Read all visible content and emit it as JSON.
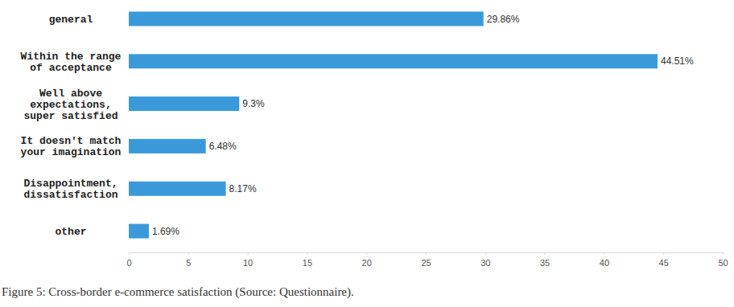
{
  "chart_data": {
    "type": "bar",
    "orientation": "horizontal",
    "title": "Figure 5: Cross-border e-commerce satisfaction (Source: Questionnaire).",
    "categories": [
      "general",
      "Within the range\nof acceptance",
      "Well above\nexpectations,\nsuper satisfied",
      "It doesn't match\nyour imagination",
      "Disappointment,\ndissatisfaction",
      "other"
    ],
    "values": [
      29.86,
      44.51,
      9.3,
      6.48,
      8.17,
      1.69
    ],
    "value_labels": [
      "29.86%",
      "44.51%",
      "9.3%",
      "6.48%",
      "8.17%",
      "1.69%"
    ],
    "data_labels": true,
    "color": "#3a9ad9",
    "xlim": [
      0,
      50
    ],
    "xticks": [
      0,
      5,
      10,
      15,
      20,
      25,
      30,
      35,
      40,
      45,
      50
    ],
    "grid": false
  }
}
